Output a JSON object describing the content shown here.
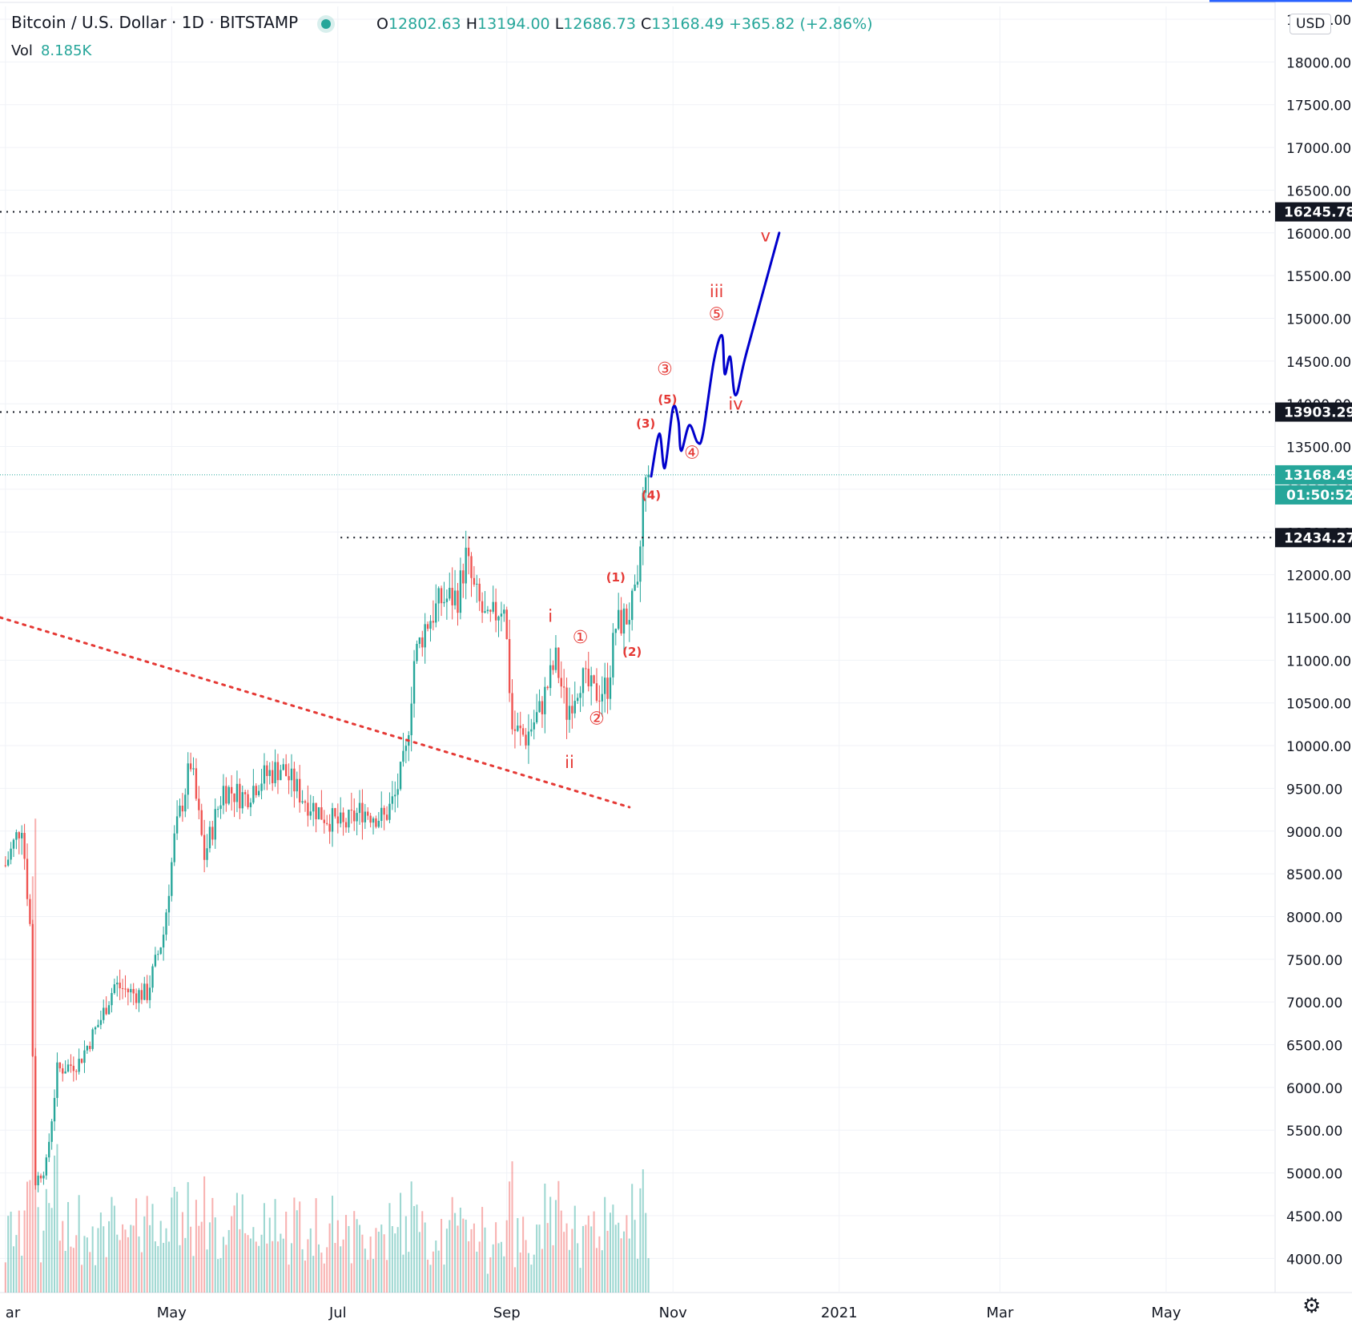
{
  "header": {
    "symbol": "Bitcoin / U.S. Dollar",
    "interval": "1D",
    "exchange": "BITSTAMP",
    "open_label": "O",
    "open": "12802.63",
    "high_label": "H",
    "high": "13194.00",
    "low_label": "L",
    "low": "12686.73",
    "close_label": "C",
    "close": "13168.49",
    "change": "+365.82 (+2.86%)",
    "vol_label": "Vol",
    "vol": "8.185K"
  },
  "toolbar": {
    "unit": "USD",
    "settings_icon": "gear-icon"
  },
  "colors": {
    "up": "#26a69a",
    "down": "#ef5350",
    "projection": "#0000cc",
    "wave_label": "#e53935",
    "trendline": "#e53935",
    "level_box": "#131722",
    "price_box": "#26a69a"
  },
  "chart_data": {
    "type": "candlestick",
    "title": "",
    "yaxis_ticks": [
      "4000.00",
      "4500.00",
      "5000.00",
      "5500.00",
      "6000.00",
      "6500.00",
      "7000.00",
      "7500.00",
      "8000.00",
      "8500.00",
      "9000.00",
      "9500.00",
      "10000.00",
      "10500.00",
      "11000.00",
      "11500.00",
      "12000.00",
      "12500.00",
      "13000.00",
      "13500.00",
      "14000.00",
      "14500.00",
      "15000.00",
      "15500.00",
      "16000.00",
      "16500.00",
      "17000.00",
      "17500.00",
      "18000.00",
      "18500.00"
    ],
    "ylim": [
      3600,
      18650
    ],
    "xaxis": [
      {
        "label": "ar",
        "date": "2020-03-01"
      },
      {
        "label": "May",
        "date": "2020-05-01"
      },
      {
        "label": "Jul",
        "date": "2020-07-01"
      },
      {
        "label": "Sep",
        "date": "2020-09-01"
      },
      {
        "label": "Nov",
        "date": "2020-11-01"
      },
      {
        "label": "2021",
        "date": "2021-01-01"
      },
      {
        "label": "Mar",
        "date": "2021-03-01"
      },
      {
        "label": "May",
        "date": "2021-05-01"
      }
    ],
    "xlim": [
      "2020-02-28",
      "2021-06-10"
    ],
    "price_series": [
      {
        "date": "2020-03-01",
        "close": 8600
      },
      {
        "date": "2020-03-07",
        "close": 9100
      },
      {
        "date": "2020-03-10",
        "close": 7900
      },
      {
        "date": "2020-03-12",
        "close": 4900
      },
      {
        "date": "2020-03-16",
        "close": 5100
      },
      {
        "date": "2020-03-20",
        "close": 6200
      },
      {
        "date": "2020-03-28",
        "close": 6300
      },
      {
        "date": "2020-04-05",
        "close": 6800
      },
      {
        "date": "2020-04-10",
        "close": 7200
      },
      {
        "date": "2020-04-17",
        "close": 7100
      },
      {
        "date": "2020-04-22",
        "close": 7100
      },
      {
        "date": "2020-04-28",
        "close": 7800
      },
      {
        "date": "2020-05-02",
        "close": 8900
      },
      {
        "date": "2020-05-08",
        "close": 9800
      },
      {
        "date": "2020-05-13",
        "close": 8700
      },
      {
        "date": "2020-05-20",
        "close": 9500
      },
      {
        "date": "2020-05-28",
        "close": 9400
      },
      {
        "date": "2020-06-02",
        "close": 9600
      },
      {
        "date": "2020-06-10",
        "close": 9750
      },
      {
        "date": "2020-06-18",
        "close": 9400
      },
      {
        "date": "2020-06-25",
        "close": 9200
      },
      {
        "date": "2020-07-03",
        "close": 9050
      },
      {
        "date": "2020-07-10",
        "close": 9250
      },
      {
        "date": "2020-07-18",
        "close": 9150
      },
      {
        "date": "2020-07-22",
        "close": 9400
      },
      {
        "date": "2020-07-26",
        "close": 9900
      },
      {
        "date": "2020-07-29",
        "close": 11000
      },
      {
        "date": "2020-08-02",
        "close": 11400
      },
      {
        "date": "2020-08-08",
        "close": 11700
      },
      {
        "date": "2020-08-14",
        "close": 11750
      },
      {
        "date": "2020-08-17",
        "close": 12200
      },
      {
        "date": "2020-08-20",
        "close": 11800
      },
      {
        "date": "2020-08-25",
        "close": 11400
      },
      {
        "date": "2020-08-31",
        "close": 11700
      },
      {
        "date": "2020-09-03",
        "close": 10200
      },
      {
        "date": "2020-09-08",
        "close": 10100
      },
      {
        "date": "2020-09-13",
        "close": 10400
      },
      {
        "date": "2020-09-19",
        "close": 11000
      },
      {
        "date": "2020-09-23",
        "close": 10400
      },
      {
        "date": "2020-09-28",
        "close": 10800
      },
      {
        "date": "2020-10-03",
        "close": 10600
      },
      {
        "date": "2020-10-08",
        "close": 10700
      },
      {
        "date": "2020-10-11",
        "close": 11400
      },
      {
        "date": "2020-10-15",
        "close": 11500
      },
      {
        "date": "2020-10-19",
        "close": 11750
      },
      {
        "date": "2020-10-21",
        "close": 12900
      },
      {
        "date": "2020-10-23",
        "close": 13168.49
      }
    ],
    "levels": [
      {
        "price": 16245.78,
        "label": "16245.78",
        "from": "2020-02-28"
      },
      {
        "price": 13903.29,
        "label": "13903.29",
        "from": "2020-02-28"
      },
      {
        "price": 12434.27,
        "label": "12434.27",
        "from": "2020-07-02"
      }
    ],
    "last_price": {
      "price": 13168.49,
      "label": "13168.49",
      "countdown": "01:50:52"
    },
    "trendline": {
      "points": [
        [
          "2020-02-28",
          11500
        ],
        [
          "2020-10-16",
          9280
        ]
      ]
    },
    "projection": [
      [
        "2020-10-24",
        13150
      ],
      [
        "2020-10-27",
        13650
      ],
      [
        "2020-10-29",
        13250
      ],
      [
        "2020-11-01",
        13950
      ],
      [
        "2020-11-03",
        13800
      ],
      [
        "2020-11-04",
        13450
      ],
      [
        "2020-11-07",
        13750
      ],
      [
        "2020-11-10",
        13550
      ],
      [
        "2020-11-12",
        13650
      ],
      [
        "2020-11-16",
        14500
      ],
      [
        "2020-11-19",
        14800
      ],
      [
        "2020-11-20",
        14350
      ],
      [
        "2020-11-22",
        14550
      ],
      [
        "2020-11-24",
        14100
      ],
      [
        "2020-11-28",
        14600
      ],
      [
        "2020-12-10",
        16000
      ]
    ],
    "wave_labels": [
      {
        "text": "i",
        "date": "2020-09-17",
        "price": 11450
      },
      {
        "text": "ii",
        "date": "2020-09-24",
        "price": 9740
      },
      {
        "text": "①",
        "date": "2020-09-28",
        "price": 11200
      },
      {
        "text": "②",
        "date": "2020-10-04",
        "price": 10250
      },
      {
        "text": "(1)",
        "date": "2020-10-11",
        "price": 11920
      },
      {
        "text": "(2)",
        "date": "2020-10-17",
        "price": 11050
      },
      {
        "text": "(3)",
        "date": "2020-10-22",
        "price": 13720
      },
      {
        "text": "(4)",
        "date": "2020-10-24",
        "price": 12880
      },
      {
        "text": "(5)",
        "date": "2020-10-30",
        "price": 14000
      },
      {
        "text": "③",
        "date": "2020-10-29",
        "price": 14340
      },
      {
        "text": "④",
        "date": "2020-11-08",
        "price": 13360
      },
      {
        "text": "iii",
        "date": "2020-11-17",
        "price": 15250
      },
      {
        "text": "⑤",
        "date": "2020-11-17",
        "price": 14980
      },
      {
        "text": "iv",
        "date": "2020-11-24",
        "price": 13930
      },
      {
        "text": "v",
        "date": "2020-12-05",
        "price": 15900
      }
    ]
  }
}
